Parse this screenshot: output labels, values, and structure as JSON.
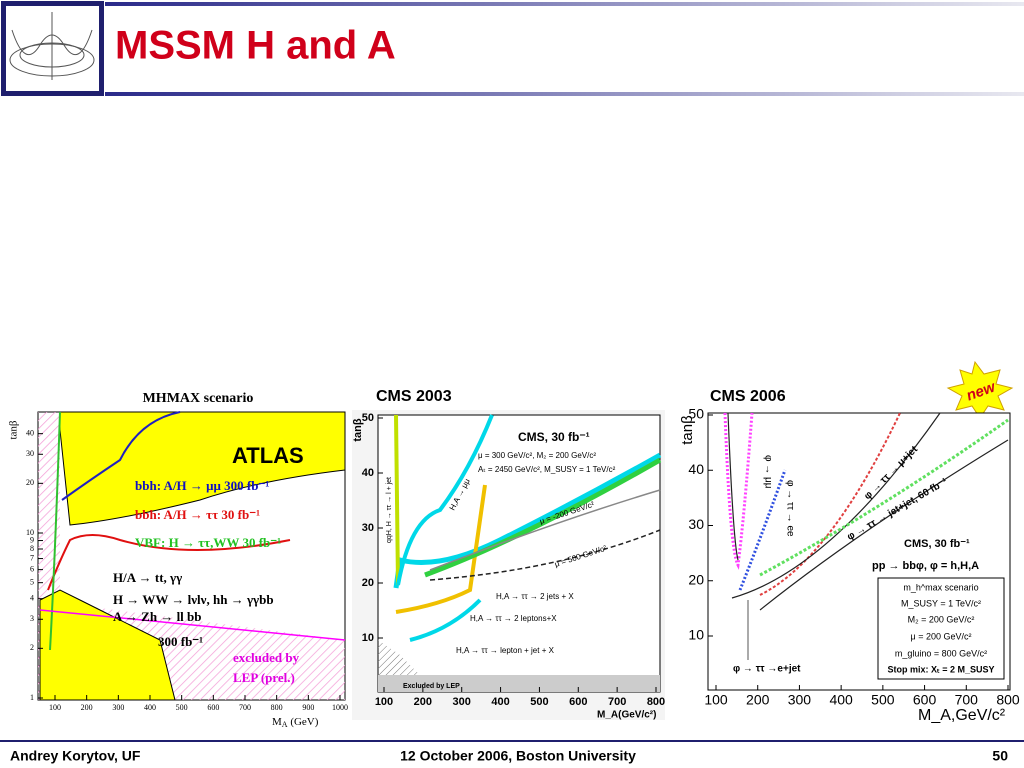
{
  "header": {
    "title": "MSSM H and A"
  },
  "footer": {
    "left": "Andrey Korytov, UF",
    "center": "12 October 2006, Boston University",
    "right": "50"
  },
  "atlas": {
    "scenario": "MHMAX scenario",
    "experiment": "ATLAS",
    "legend": [
      "bbh: A/H → μμ 300 fb⁻¹",
      "bbh: A/H → ττ 30 fb⁻¹",
      "VBF: H → ττ,WW 30 fb⁻¹"
    ],
    "channels": [
      "H/A → tt, γγ",
      "H → WW → lνlν, hh → γγbb",
      "A → Zh → ll bb",
      "300 fb⁻¹"
    ],
    "lep": [
      "excluded by",
      "LEP (prel.)"
    ],
    "y_label": "tanβ",
    "x_label": {
      "main": "M",
      "sub": "A",
      "rest": " (GeV)"
    },
    "xticks": [
      "100",
      "200",
      "300",
      "400",
      "500",
      "600",
      "700",
      "800",
      "900",
      "1000"
    ],
    "yticks": [
      "1",
      "2",
      "3",
      "4",
      "5",
      "6",
      "7",
      "8",
      "9",
      "10",
      "20",
      "30",
      "40"
    ]
  },
  "cms2003": {
    "caption": "CMS 2003",
    "lumi": "CMS, 30 fb⁻¹",
    "params": [
      "μ = 300 GeV/c², M₂ = 200 GeV/c²",
      "Aₜ = 2450 GeV/c², M_SUSY = 1 TeV/c²"
    ],
    "mu_labels": [
      "μ = -200 GeV/c²",
      "μ = 500 GeV/c²"
    ],
    "channels": [
      "H,A → μμ",
      "qqH, H → ττ → l + jet",
      "H,A → ττ → 2 jets + X",
      "H,A → ττ → 2 leptons+X",
      "H,A → ττ → lepton + jet + X"
    ],
    "lep": "Excluded by LEP",
    "y_label": "tanβ",
    "x_label": "M_A(GeV/c²)",
    "xticks": [
      "100",
      "200",
      "300",
      "400",
      "500",
      "600",
      "700",
      "800"
    ],
    "yticks": [
      "10",
      "20",
      "30",
      "40",
      "50"
    ]
  },
  "cms2006": {
    "caption": "CMS 2006",
    "badge": "new",
    "y_label": "tanβ",
    "x_label": "M_A,GeV/c²",
    "channels": [
      "φ → μμ",
      "φ → ττ → ee",
      "φ → ττ → μ+jet",
      "φ → ττ → jet+jet, 60 fb⁻¹",
      "φ → ττ →e+jet"
    ],
    "lumi": "CMS, 30 fb⁻¹",
    "process": "pp → bbφ, φ = h,H,A",
    "box": [
      "m_h^max scenario",
      "M_SUSY = 1 TeV/c²",
      "M₂ = 200 GeV/c²",
      "μ = 200 GeV/c²",
      "m_gluino = 800 GeV/c²",
      "Stop mix: Xₜ = 2 M_SUSY"
    ],
    "xticks": [
      "100",
      "200",
      "300",
      "400",
      "500",
      "600",
      "700",
      "800"
    ],
    "yticks": [
      "10",
      "20",
      "30",
      "40",
      "50"
    ]
  }
}
